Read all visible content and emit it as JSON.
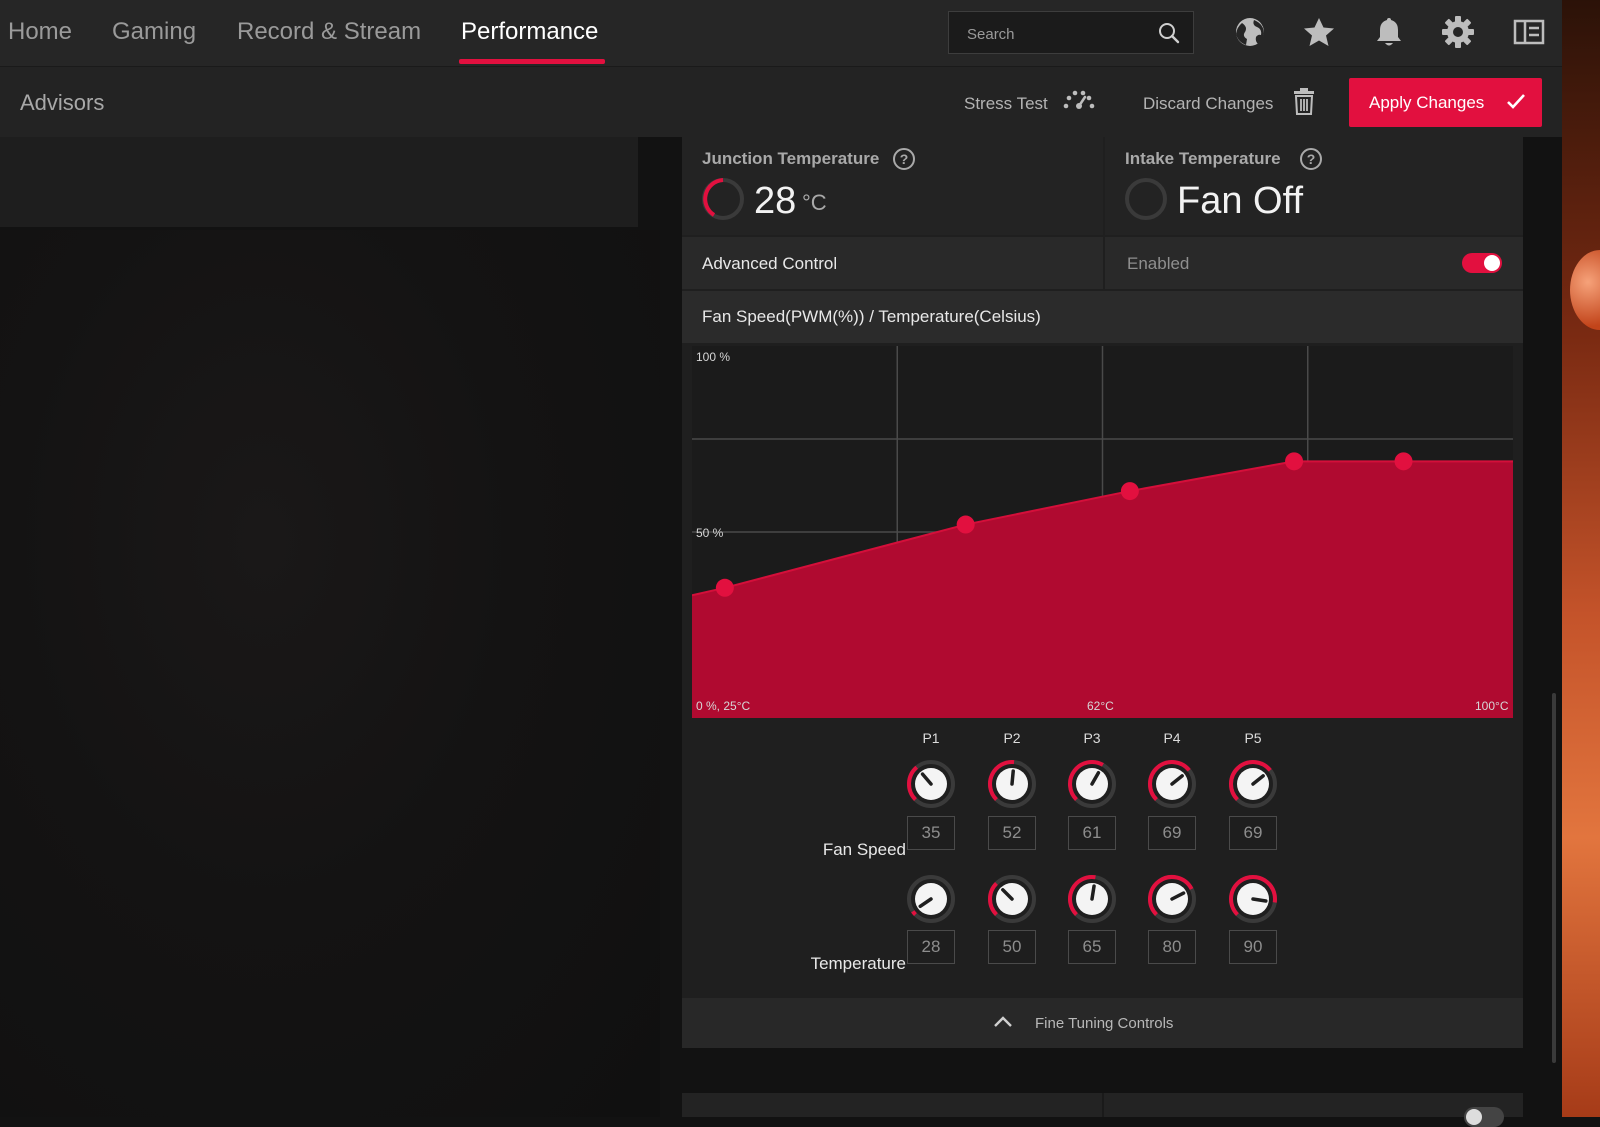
{
  "nav": {
    "tabs": [
      {
        "label": "Home"
      },
      {
        "label": "Gaming"
      },
      {
        "label": "Record & Stream"
      },
      {
        "label": "Performance",
        "active": true
      }
    ],
    "search_placeholder": "Search",
    "icons": [
      "search-icon",
      "globe-icon",
      "star-icon",
      "bell-icon",
      "gear-icon",
      "layout-icon"
    ]
  },
  "subheader": {
    "section": "Advisors",
    "stress_test_label": "Stress Test",
    "discard_label": "Discard Changes",
    "apply_label": "Apply Changes"
  },
  "temperatures": {
    "junction": {
      "title": "Junction Temperature",
      "value": "28",
      "unit": "°C"
    },
    "intake": {
      "title": "Intake Temperature",
      "value": "Fan Off"
    }
  },
  "advanced_control": {
    "label": "Advanced Control",
    "status": "Enabled",
    "enabled": true
  },
  "fan_curve": {
    "title": "Fan Speed(PWM(%)) / Temperature(Celsius)",
    "accent": "#e2103f"
  },
  "chart_data": {
    "type": "area",
    "x": [
      28,
      50,
      65,
      80,
      90
    ],
    "values": [
      35,
      52,
      61,
      69,
      69
    ],
    "xlim": [
      25,
      100
    ],
    "ylim": [
      0,
      100
    ],
    "tick_labels": {
      "y_top": "100 %",
      "y_mid": "50 %",
      "origin": "0 %, 25°C",
      "x_mid": "62°C",
      "x_max": "100°C"
    },
    "grid": true
  },
  "points": {
    "headers": [
      "P1",
      "P2",
      "P3",
      "P4",
      "P5"
    ],
    "fan_speed_label": "Fan Speed",
    "temperature_label": "Temperature",
    "fan_speed": [
      "35",
      "52",
      "61",
      "69",
      "69"
    ],
    "temperature": [
      "28",
      "50",
      "65",
      "80",
      "90"
    ]
  },
  "fine_tuning": {
    "label": "Fine Tuning Controls"
  }
}
